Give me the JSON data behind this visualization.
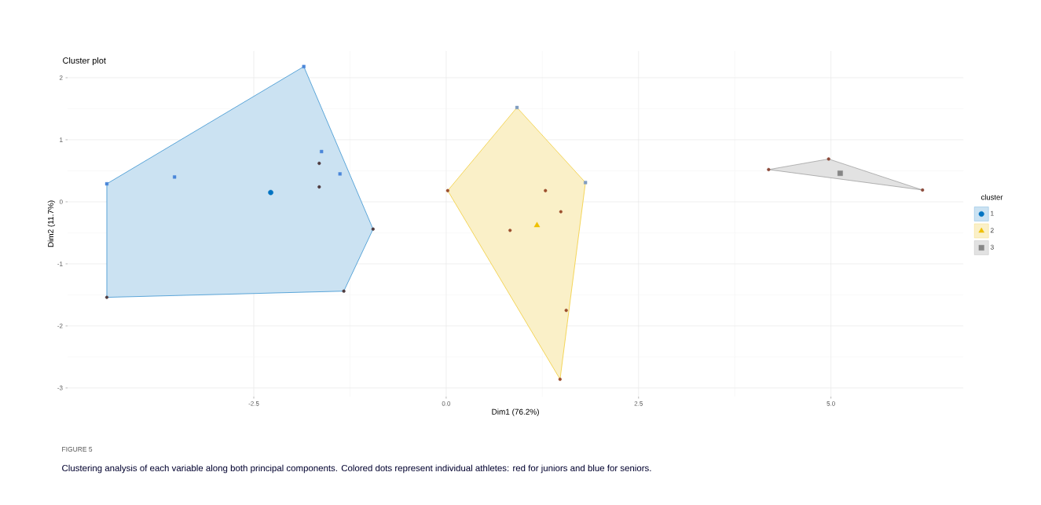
{
  "chart_data": {
    "type": "scatter",
    "title": "Cluster plot",
    "xlabel": "Dim1 (76.2%)",
    "ylabel": "Dim2 (11.7%)",
    "legend_title": "cluster",
    "annotations": [
      "FIGURE 5",
      "Clustering analysis of each variable along both principal components. Colored dots represent individual athletes: red for juniors and blue for seniors."
    ],
    "xlim": [
      -4.92,
      6.72
    ],
    "ylim": [
      -3.14,
      2.43
    ],
    "xticks": [
      {
        "value": -2.5,
        "label": "-2.5"
      },
      {
        "value": 0,
        "label": "0.0"
      },
      {
        "value": 2.5,
        "label": "2.5"
      },
      {
        "value": 5,
        "label": "5.0"
      }
    ],
    "yticks": [
      -3,
      -2,
      -1,
      0,
      1,
      2
    ],
    "grid": true,
    "legend": "right",
    "series": [
      {
        "type": "area",
        "color": "#cbe2f2",
        "x": [
          -4.41,
          -1.85,
          -0.95,
          -1.33,
          -4.41
        ],
        "values": [
          0.29,
          2.18,
          -0.44,
          -1.44,
          -1.54
        ]
      },
      {
        "type": "area",
        "color": "#faf0c8",
        "x": [
          0.02,
          0.92,
          1.81,
          1.48
        ],
        "values": [
          0.18,
          1.52,
          0.31,
          -2.86
        ]
      },
      {
        "type": "area",
        "color": "#e2e2e2",
        "x": [
          4.19,
          4.97,
          6.19
        ],
        "values": [
          0.52,
          0.69,
          0.19
        ]
      },
      {
        "type": "scatter",
        "marker": "circle",
        "x": [
          -1.65,
          -1.65,
          -0.95,
          -1.33,
          -4.41,
          0.02,
          1.29,
          1.49,
          0.83,
          1.56,
          1.48,
          4.19,
          4.97,
          6.19
        ],
        "values": [
          0.62,
          0.24,
          -0.44,
          -1.44,
          -1.54,
          0.18,
          0.18,
          -0.16,
          -0.46,
          -1.75,
          -2.86,
          0.52,
          0.69,
          0.19
        ],
        "colors": [
          "#4e3b3f",
          "#4e3b3f",
          "#4e3b3f",
          "#4e3b3f",
          "#4e3b3f",
          "#9c4f2e",
          "#9c4f2e",
          "#9c4f2e",
          "#9c4f2e",
          "#9c4f2e",
          "#9c4f2e",
          "#8c4a3a",
          "#8c4a3a",
          "#8c4a3a"
        ]
      },
      {
        "type": "scatter",
        "marker": "square",
        "x": [
          -4.41,
          -3.53,
          -1.85,
          -1.62,
          -1.38,
          0.92,
          1.81
        ],
        "values": [
          0.29,
          0.4,
          2.18,
          0.81,
          0.45,
          1.52,
          0.31
        ],
        "colors": [
          "#4a86d9",
          "#4a86d9",
          "#4a86d9",
          "#4a86d9",
          "#4a86d9",
          "#7f9cc0",
          "#7f9cc0"
        ]
      },
      {
        "name": "1",
        "type": "scatter",
        "marker": "circle",
        "color": "#0073c2",
        "x": [
          -2.28
        ],
        "values": [
          0.15
        ]
      },
      {
        "name": "2",
        "type": "scatter",
        "marker": "triangle",
        "color": "#efc000",
        "x": [
          1.18
        ],
        "values": [
          -0.38
        ]
      },
      {
        "name": "3",
        "type": "scatter",
        "marker": "square",
        "color": "#868686",
        "x": [
          5.12
        ],
        "values": [
          0.46
        ]
      }
    ]
  }
}
